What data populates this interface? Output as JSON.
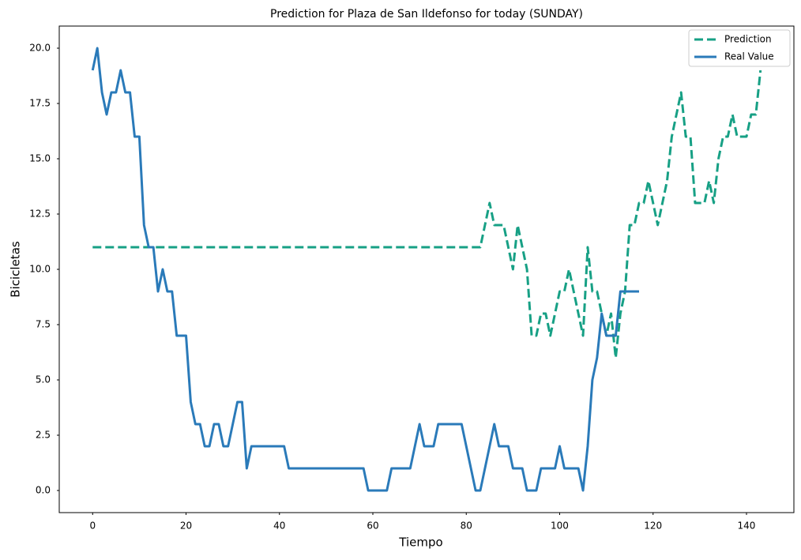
{
  "chart_data": {
    "type": "line",
    "title": "Prediction for Plaza de San Ildefonso for today (SUNDAY)",
    "xlabel": "Tiempo",
    "ylabel": "Bicicletas",
    "x": [
      0,
      1,
      2,
      3,
      4,
      5,
      6,
      7,
      8,
      9,
      10,
      11,
      12,
      13,
      14,
      15,
      16,
      17,
      18,
      19,
      20,
      21,
      22,
      23,
      24,
      25,
      26,
      27,
      28,
      29,
      30,
      31,
      32,
      33,
      34,
      35,
      36,
      37,
      38,
      39,
      40,
      41,
      42,
      43,
      44,
      45,
      46,
      47,
      48,
      49,
      50,
      51,
      52,
      53,
      54,
      55,
      56,
      57,
      58,
      59,
      60,
      61,
      62,
      63,
      64,
      65,
      66,
      67,
      68,
      69,
      70,
      71,
      72,
      73,
      74,
      75,
      76,
      77,
      78,
      79,
      80,
      81,
      82,
      83,
      84,
      85,
      86,
      87,
      88,
      89,
      90,
      91,
      92,
      93,
      94,
      95,
      96,
      97,
      98,
      99,
      100,
      101,
      102,
      103,
      104,
      105,
      106,
      107,
      108,
      109,
      110,
      111,
      112,
      113,
      114,
      115,
      116,
      117,
      118,
      119,
      120,
      121,
      122,
      123,
      124,
      125,
      126,
      127,
      128,
      129,
      130,
      131,
      132,
      133,
      134,
      135,
      136,
      137,
      138,
      139,
      140,
      141,
      142,
      143
    ],
    "series": [
      {
        "name": "Prediction",
        "color": "#17a085",
        "linestyle": "dashed",
        "values": [
          11,
          11,
          11,
          11,
          11,
          11,
          11,
          11,
          11,
          11,
          11,
          11,
          11,
          11,
          11,
          11,
          11,
          11,
          11,
          11,
          11,
          11,
          11,
          11,
          11,
          11,
          11,
          11,
          11,
          11,
          11,
          11,
          11,
          11,
          11,
          11,
          11,
          11,
          11,
          11,
          11,
          11,
          11,
          11,
          11,
          11,
          11,
          11,
          11,
          11,
          11,
          11,
          11,
          11,
          11,
          11,
          11,
          11,
          11,
          11,
          11,
          11,
          11,
          11,
          11,
          11,
          11,
          11,
          11,
          11,
          11,
          11,
          11,
          11,
          11,
          11,
          11,
          11,
          11,
          11,
          11,
          11,
          11,
          11,
          12,
          13,
          12,
          12,
          12,
          11,
          10,
          12,
          11,
          10,
          7,
          7,
          8,
          8,
          7,
          8,
          9,
          9,
          10,
          9,
          8,
          7,
          11,
          9,
          9,
          8,
          7,
          8,
          6,
          8,
          9,
          12,
          12,
          13,
          13,
          14,
          13,
          12,
          13,
          14,
          16,
          17,
          18,
          16,
          16,
          13,
          13,
          13,
          14,
          13,
          15,
          16,
          16,
          17,
          16,
          16,
          16,
          17,
          17,
          19
        ]
      },
      {
        "name": "Real Value",
        "color": "#2a7ab9",
        "linestyle": "solid",
        "values": [
          19,
          20,
          18,
          17,
          18,
          18,
          19,
          18,
          18,
          16,
          16,
          12,
          11,
          11,
          9,
          10,
          9,
          9,
          7,
          7,
          7,
          4,
          3,
          3,
          2,
          2,
          3,
          3,
          2,
          2,
          3,
          4,
          4,
          1,
          2,
          2,
          2,
          2,
          2,
          2,
          2,
          2,
          1,
          1,
          1,
          1,
          1,
          1,
          1,
          1,
          1,
          1,
          1,
          1,
          1,
          1,
          1,
          1,
          1,
          0,
          0,
          0,
          0,
          0,
          1,
          1,
          1,
          1,
          1,
          2,
          3,
          2,
          2,
          2,
          3,
          3,
          3,
          3,
          3,
          3,
          2,
          1,
          0,
          0,
          1,
          2,
          3,
          2,
          2,
          2,
          1,
          1,
          1,
          0,
          0,
          0,
          1,
          1,
          1,
          1,
          2,
          1,
          1,
          1,
          1,
          0,
          2,
          5,
          6,
          8,
          7,
          7,
          7,
          9,
          9,
          9,
          9,
          9,
          null,
          null,
          null,
          null,
          null,
          null,
          null,
          null,
          null,
          null,
          null,
          null,
          null,
          null,
          null,
          null,
          null,
          null,
          null,
          null,
          null,
          null,
          null,
          null,
          null,
          null
        ]
      }
    ],
    "xlim": [
      -7.15,
      150.15
    ],
    "xticks": [
      0,
      20,
      40,
      60,
      80,
      100,
      120,
      140
    ],
    "ylim": [
      -1,
      21
    ],
    "yticks": [
      {
        "value": 0,
        "label": "0.0"
      },
      {
        "value": 2.5,
        "label": "2.5"
      },
      {
        "value": 5,
        "label": "5.0"
      },
      {
        "value": 7.5,
        "label": "7.5"
      },
      {
        "value": 10,
        "label": "10.0"
      },
      {
        "value": 12.5,
        "label": "12.5"
      },
      {
        "value": 15,
        "label": "15.0"
      },
      {
        "value": 17.5,
        "label": "17.5"
      },
      {
        "value": 20,
        "label": "20.0"
      }
    ],
    "legend": "upper right"
  }
}
